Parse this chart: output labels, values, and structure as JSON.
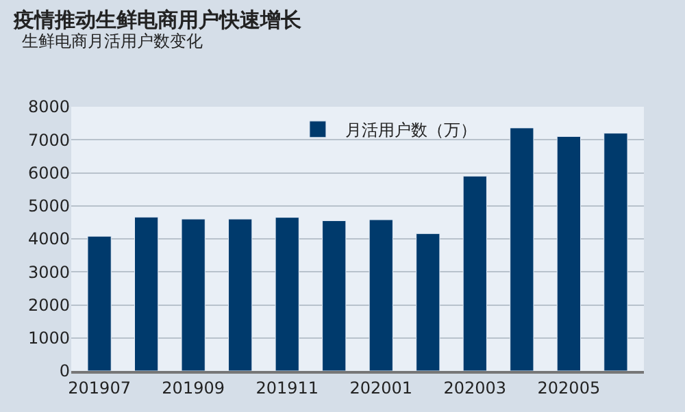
{
  "chart_data": {
    "type": "bar",
    "title": "疫情推动生鲜电商用户快速增长",
    "subtitle": "生鲜电商月活用户数变化",
    "categories": [
      "201907",
      null,
      "201909",
      null,
      "201911",
      null,
      "202001",
      null,
      "202003",
      null,
      "202005",
      null
    ],
    "series": [
      {
        "name": "月活用户数（万）",
        "color": "#003a6c",
        "values": [
          4080,
          4660,
          4600,
          4600,
          4650,
          4550,
          4580,
          4160,
          5900,
          7360,
          7100,
          7200
        ]
      }
    ],
    "ylim": [
      0,
      8000
    ],
    "yticks": [
      0,
      1000,
      2000,
      3000,
      4000,
      5000,
      6000,
      7000,
      8000
    ],
    "grid": "y",
    "legend": "top right"
  }
}
